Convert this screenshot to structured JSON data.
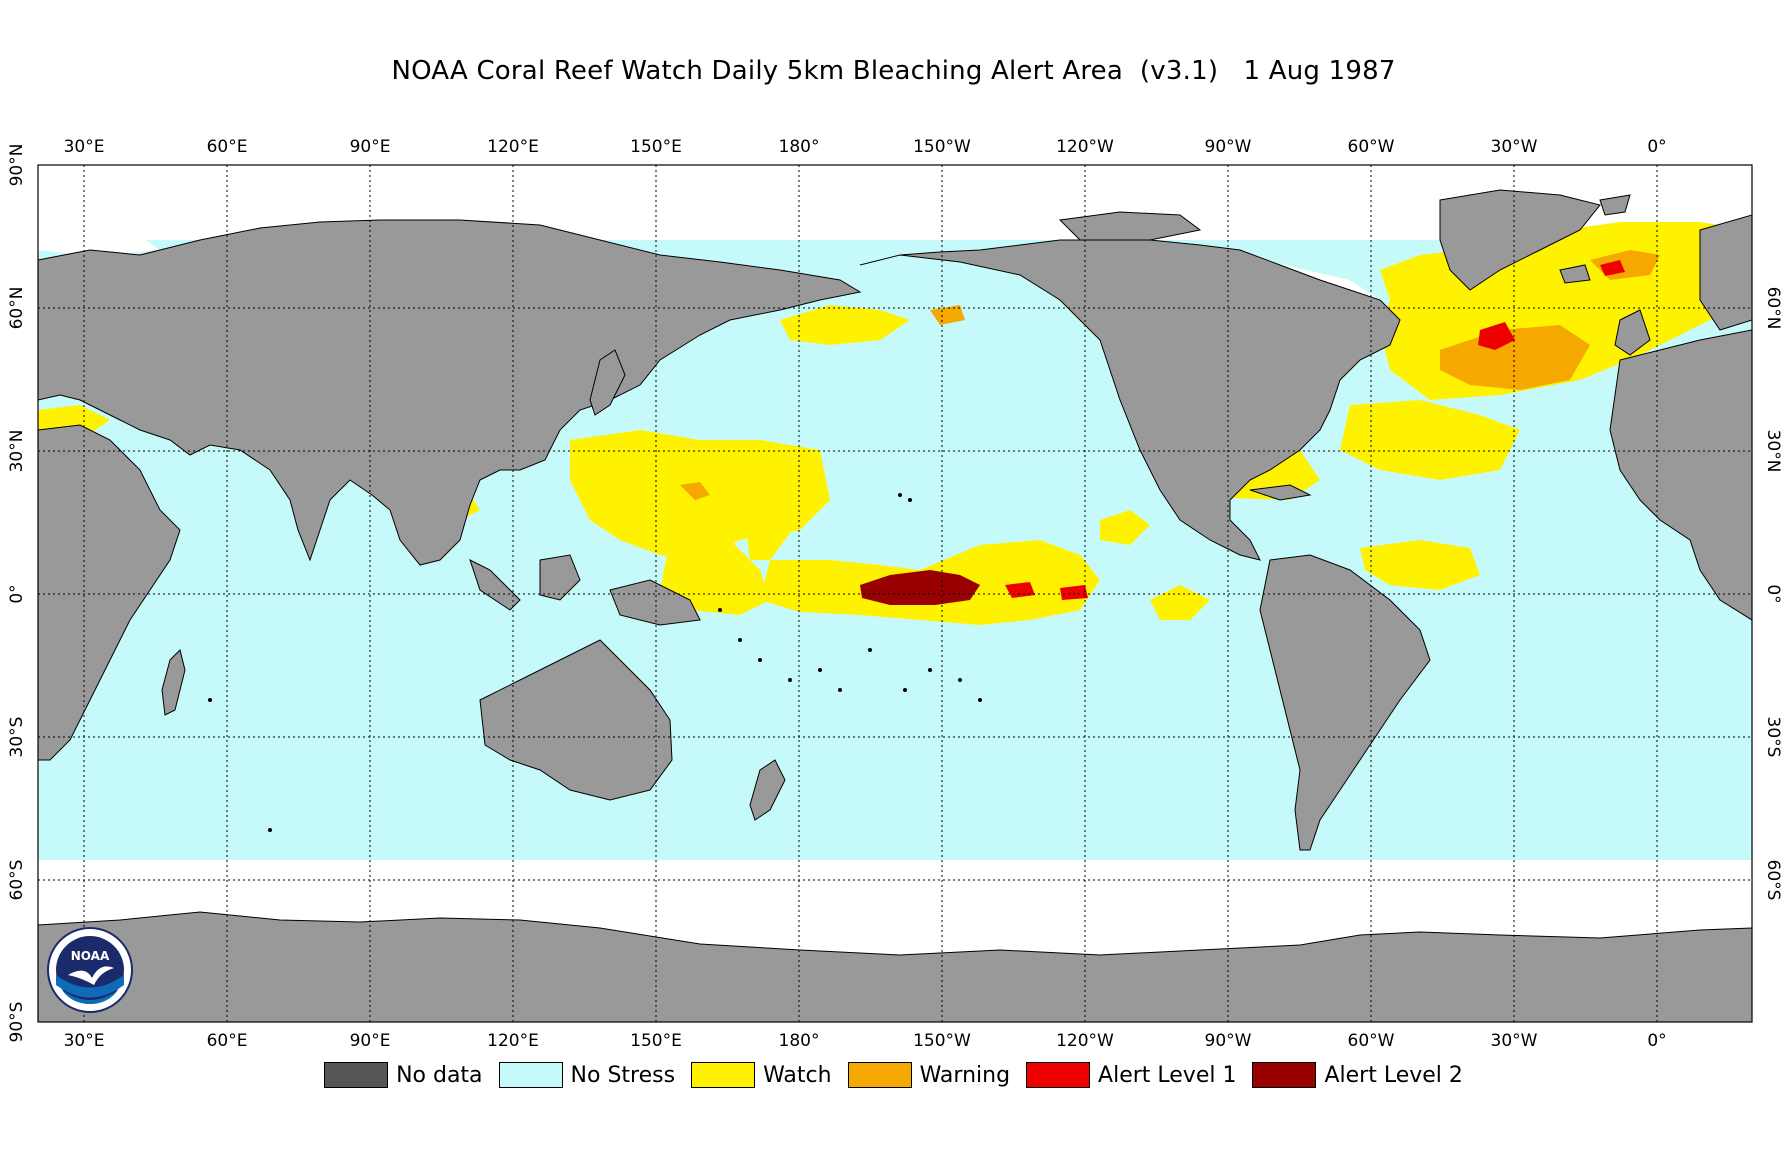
{
  "title": "NOAA Coral Reef Watch Daily 5km Bleaching Alert Area  (v3.1)   1 Aug 1987",
  "logo": {
    "text": "NOAA",
    "icon": "noaa-logo-icon"
  },
  "longitude_labels": [
    "30°E",
    "60°E",
    "90°E",
    "120°E",
    "150°E",
    "180°",
    "150°W",
    "120°W",
    "90°W",
    "60°W",
    "30°W",
    "0°"
  ],
  "latitude_labels_left": [
    "90°N",
    "60°N",
    "30°N",
    "0°",
    "30°S",
    "60°S",
    "90°S"
  ],
  "latitude_labels_right": [
    "60°N",
    "30°N",
    "0°",
    "30°S",
    "60°S"
  ],
  "colors": {
    "land": "#999999",
    "ocean": "#c6fafa",
    "ice": "#ffffff",
    "watch": "#fff200",
    "warning": "#f5a800",
    "alert1": "#ee0000",
    "alert2": "#990000",
    "nodata": "#555555"
  },
  "legend": [
    {
      "label": "No data",
      "color": "#555555"
    },
    {
      "label": "No Stress",
      "color": "#c6fafa"
    },
    {
      "label": "Watch",
      "color": "#fff200"
    },
    {
      "label": "Warning",
      "color": "#f5a800"
    },
    {
      "label": "Alert Level 1",
      "color": "#ee0000"
    },
    {
      "label": "Alert Level 2",
      "color": "#990000"
    }
  ]
}
